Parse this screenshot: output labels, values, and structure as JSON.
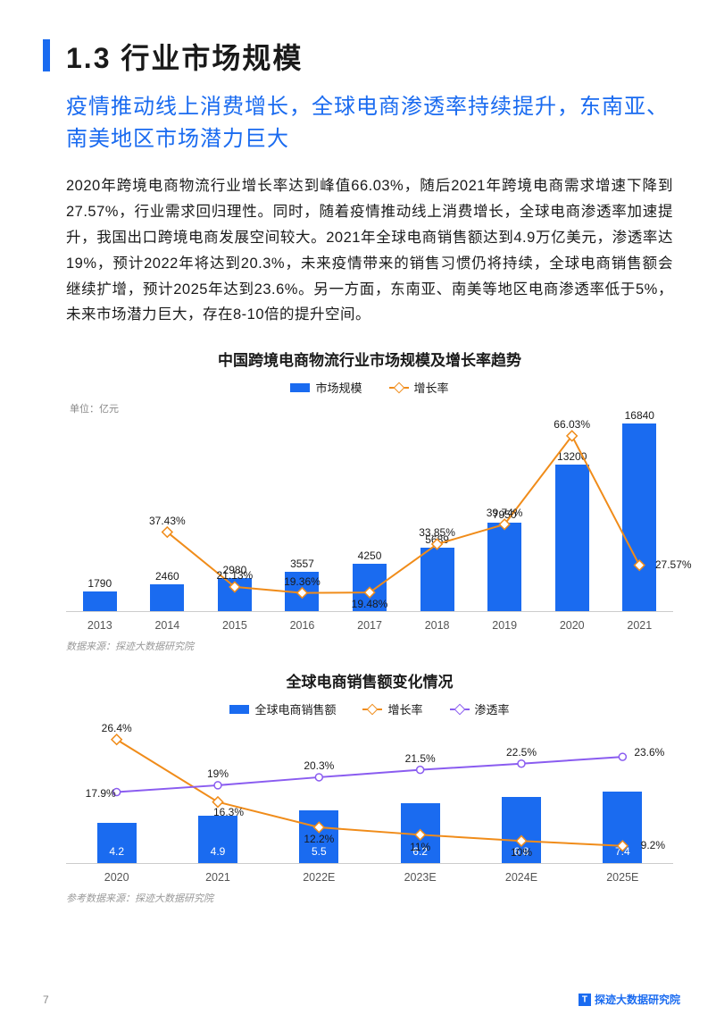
{
  "header": {
    "number": "1.3",
    "title": "行业市场规模"
  },
  "subtitle": "疫情推动线上消费增长，全球电商渗透率持续提升，东南亚、南美地区市场潜力巨大",
  "body": "2020年跨境电商物流行业增长率达到峰值66.03%，随后2021年跨境电商需求增速下降到27.57%，行业需求回归理性。同时，随着疫情推动线上消费增长，全球电商渗透率加速提升，我国出口跨境电商发展空间较大。2021年全球电商销售额达到4.9万亿美元，渗透率达19%，预计2022年将达到20.3%，未来疫情带来的销售习惯仍将持续，全球电商销售额会继续扩增，预计2025年达到23.6%。另一方面，东南亚、南美等地区电商渗透率低于5%，未来市场潜力巨大，存在8-10倍的提升空间。",
  "chart1": {
    "title": "中国跨境电商物流行业市场规模及增长率趋势",
    "legend": {
      "bar": "市场规模",
      "line": "增长率"
    },
    "unit": "单位：亿元",
    "bar_color": "#1a6bf0",
    "line_color": "#f08c1a",
    "categories": [
      "2013",
      "2014",
      "2015",
      "2016",
      "2017",
      "2018",
      "2019",
      "2020",
      "2021"
    ],
    "bar_values": [
      1790,
      2460,
      2980,
      3557,
      4250,
      5689,
      7950,
      13200,
      16840
    ],
    "bar_max": 17500,
    "line_values": [
      null,
      37.43,
      21.13,
      19.36,
      19.48,
      33.85,
      39.74,
      66.03,
      27.57
    ],
    "line_min": 15,
    "line_max": 70,
    "line_labelpos": [
      "",
      "top",
      "top",
      "top",
      "bottom",
      "top",
      "top",
      "top",
      "right"
    ],
    "source": "数据来源：探迹大数据研究院"
  },
  "chart2": {
    "title": "全球电商销售额变化情况",
    "legend": {
      "bar": "全球电商销售额",
      "line1": "增长率",
      "line2": "渗透率"
    },
    "bar_color": "#1a6bf0",
    "line1_color": "#f08c1a",
    "line2_color": "#8a5cf0",
    "categories": [
      "2020",
      "2021",
      "2022E",
      "2023E",
      "2024E",
      "2025E"
    ],
    "bar_values": [
      4.2,
      4.9,
      5.5,
      6.2,
      6.8,
      7.4
    ],
    "bar_max": 8.0,
    "line1_values": [
      26.4,
      16.3,
      12.2,
      11.0,
      10.0,
      9.2
    ],
    "line2_values": [
      17.9,
      19.0,
      20.3,
      21.5,
      22.5,
      23.6
    ],
    "line_min": 7,
    "line_max": 28,
    "source": "参考数据来源：探迹大数据研究院"
  },
  "footer": {
    "page": "7",
    "brand": "探迹大数据研究院"
  }
}
